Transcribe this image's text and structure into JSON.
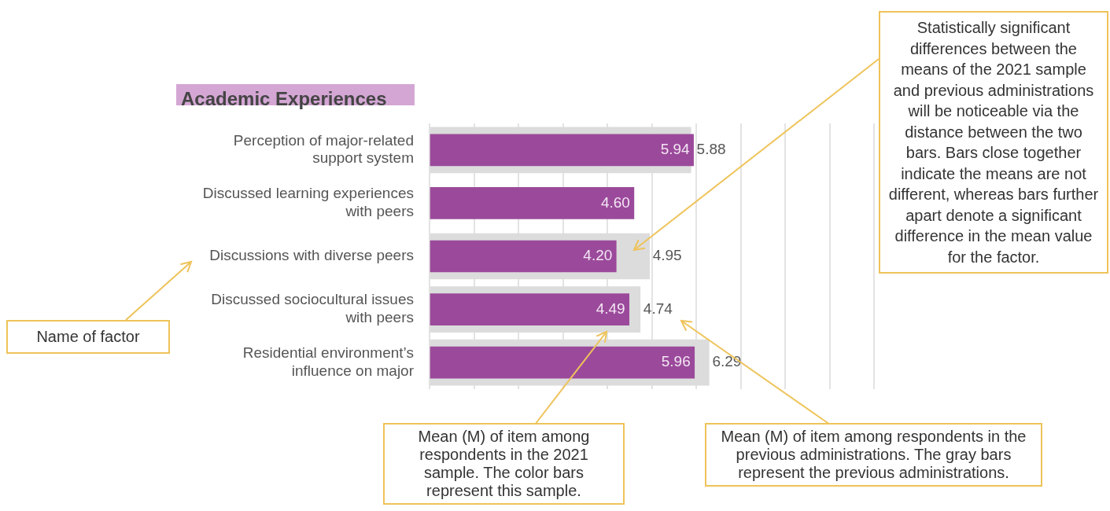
{
  "chart_data": {
    "type": "bar",
    "orientation": "horizontal",
    "title": "Academic Experiences",
    "categories": [
      "Perception of major-related support system",
      "Discussed learning experiences with peers",
      "Discussions with diverse peers",
      "Discussed sociocultural issues with peers",
      "Residential environment’s influence on major"
    ],
    "series": [
      {
        "color": "#dcdcdc",
        "values": [
          5.88,
          null,
          4.95,
          4.74,
          6.29
        ],
        "value_labels": [
          "5.88",
          null,
          "4.95",
          "4.74",
          "6.29"
        ]
      },
      {
        "color": "#9b4a9b",
        "values": [
          5.94,
          4.6,
          4.2,
          4.49,
          5.96
        ],
        "value_labels": [
          "5.94",
          "4.60",
          "4.20",
          "4.49",
          "5.96"
        ]
      }
    ],
    "xlim": [
      0,
      10
    ],
    "xticks": [
      {
        "value": 0,
        "label": null
      },
      {
        "value": 1,
        "label": null
      },
      {
        "value": 2,
        "label": null
      },
      {
        "value": 3,
        "label": null
      },
      {
        "value": 4,
        "label": null
      },
      {
        "value": 5,
        "label": null
      },
      {
        "value": 6,
        "label": null
      },
      {
        "value": 7,
        "label": null
      },
      {
        "value": 8,
        "label": null
      },
      {
        "value": 9,
        "label": null
      },
      {
        "value": 10,
        "label": null
      }
    ],
    "tick_labels": "y",
    "grid": "x",
    "legend": false,
    "annotations": [
      "Statistically significant differences between the means of the 2021 sample and previous administrations will be noticeable via the distance between the two bars. Bars close together indicate the means are not different, whereas bars further apart denote a significant difference in the mean value for the factor.",
      "Name of factor",
      "Mean (M) of item among respondents in the 2021 sample. The color bars represent this sample.",
      "Mean (M) of item among respondents in the previous administrations. The gray bars represent the previous administrations."
    ]
  }
}
